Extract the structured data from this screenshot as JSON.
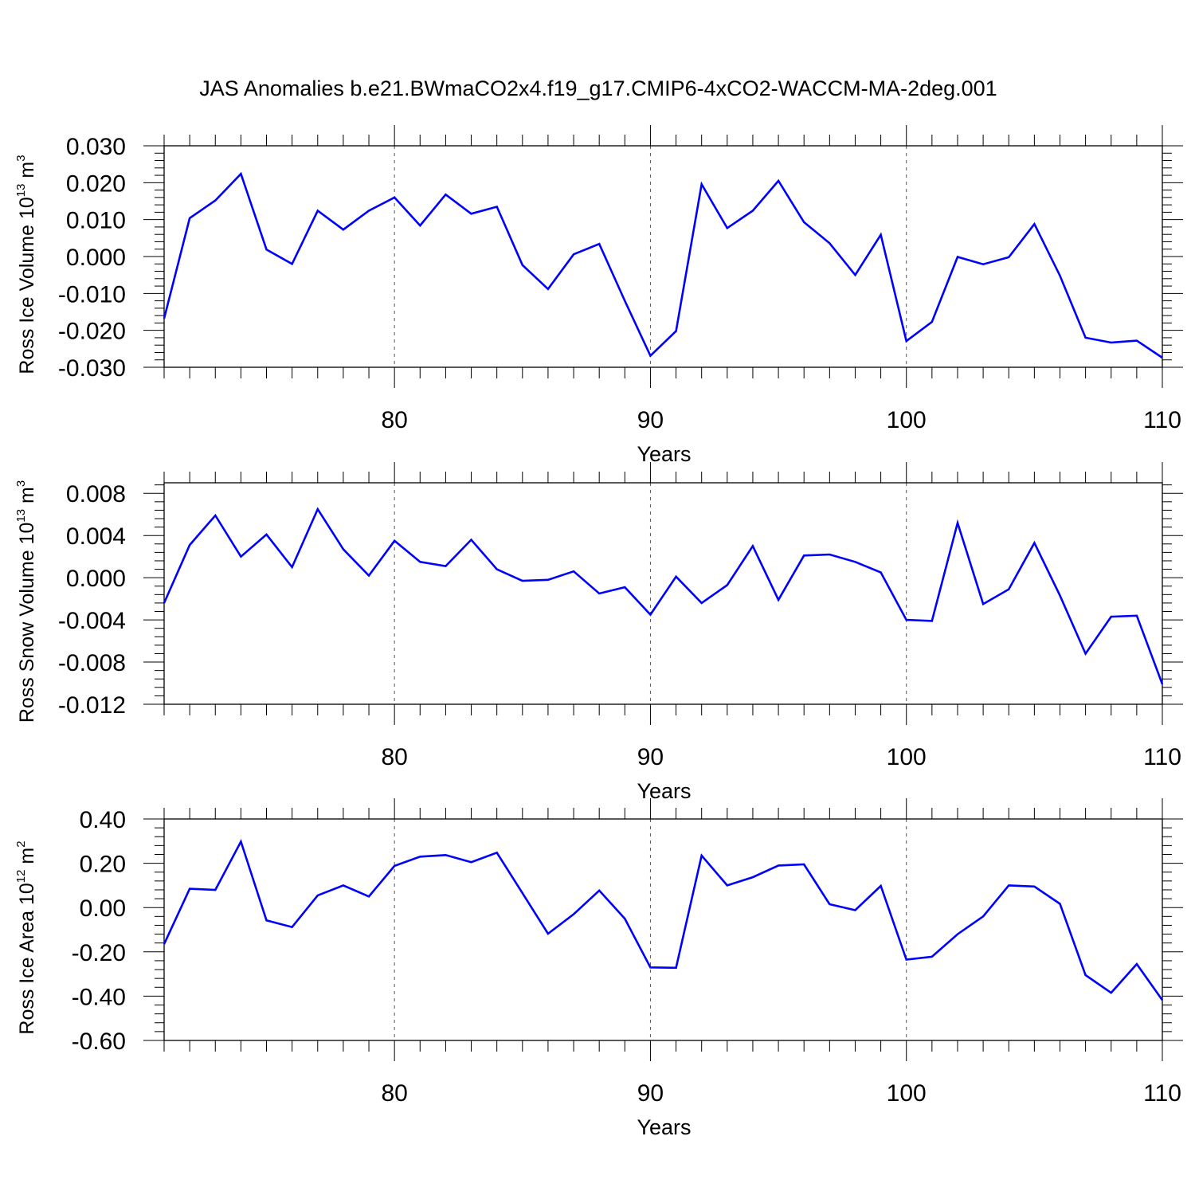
{
  "title": "JAS Anomalies b.e21.BWmaCO2x4.f19_g17.CMIP6-4xCO2-WACCM-MA-2deg.001",
  "colors": {
    "line": "#0000ff",
    "axes": "#000000",
    "grid": "#555555"
  },
  "chart_data": [
    {
      "type": "line",
      "ylabel": {
        "prefix": "Ross Ice Volume 10",
        "exp": "13",
        "unit": " m",
        "unit_exp": "3"
      },
      "xlabel": "Years",
      "xlim": [
        71,
        110
      ],
      "ylim": [
        -0.03,
        0.03
      ],
      "xticks": [
        80,
        90,
        100,
        110
      ],
      "xtick_labels": [
        "80",
        "90",
        "100",
        "110"
      ],
      "yticks": [
        -0.03,
        -0.02,
        -0.01,
        0,
        0.01,
        0.02,
        0.03
      ],
      "ytick_labels": [
        "-0.030",
        "-0.020",
        "-0.010",
        "0.000",
        "0.010",
        "0.020",
        "0.030"
      ],
      "grid": "vertical dashed at major x ticks",
      "x": [
        71,
        72,
        73,
        74,
        75,
        76,
        77,
        78,
        79,
        80,
        81,
        82,
        83,
        84,
        85,
        86,
        87,
        88,
        89,
        90,
        91,
        92,
        93,
        94,
        95,
        96,
        97,
        98,
        99,
        100,
        101,
        102,
        103,
        104,
        105,
        106,
        107,
        108,
        109,
        110
      ],
      "series": [
        {
          "values": [
            -0.0168,
            0.0104,
            0.0152,
            0.0224,
            0.0019,
            -0.002,
            0.0124,
            0.0073,
            0.0124,
            0.016,
            0.0084,
            0.0168,
            0.0116,
            0.0135,
            -0.0023,
            -0.0088,
            0.0006,
            0.0034,
            -0.012,
            -0.0269,
            -0.0202,
            0.0196,
            0.0077,
            0.0124,
            0.0205,
            0.0093,
            0.0036,
            -0.005,
            0.0059,
            -0.0229,
            -0.0177,
            -0.0001,
            -0.0021,
            -0.0002,
            0.0088,
            -0.0052,
            -0.022,
            -0.0233,
            -0.0228,
            -0.0274
          ]
        }
      ]
    },
    {
      "type": "line",
      "ylabel": {
        "prefix": "Ross Snow Volume 10",
        "exp": "13",
        "unit": " m",
        "unit_exp": "3"
      },
      "xlabel": "Years",
      "xlim": [
        71,
        110
      ],
      "ylim": [
        -0.012,
        0.009
      ],
      "xticks": [
        80,
        90,
        100,
        110
      ],
      "xtick_labels": [
        "80",
        "90",
        "100",
        "110"
      ],
      "yticks": [
        -0.012,
        -0.008,
        -0.004,
        0,
        0.004,
        0.008
      ],
      "ytick_labels": [
        "-0.012",
        "-0.008",
        "-0.004",
        "0.000",
        "0.004",
        "0.008"
      ],
      "grid": "vertical dashed at major x ticks",
      "x": [
        71,
        72,
        73,
        74,
        75,
        76,
        77,
        78,
        79,
        80,
        81,
        82,
        83,
        84,
        85,
        86,
        87,
        88,
        89,
        90,
        91,
        92,
        93,
        94,
        95,
        96,
        97,
        98,
        99,
        100,
        101,
        102,
        103,
        104,
        105,
        106,
        107,
        108,
        109,
        110
      ],
      "series": [
        {
          "values": [
            -0.0024,
            0.0031,
            0.0059,
            0.002,
            0.0041,
            0.001,
            0.0065,
            0.0027,
            0.0002,
            0.0035,
            0.0015,
            0.0011,
            0.0036,
            0.0008,
            -0.0003,
            -0.0002,
            0.0006,
            -0.0015,
            -0.0009,
            -0.0035,
            0.0001,
            -0.0024,
            -0.0007,
            0.003,
            -0.0021,
            0.0021,
            0.0022,
            0.0015,
            0.0005,
            -0.004,
            -0.0041,
            0.0052,
            -0.0025,
            -0.0011,
            0.0033,
            -0.0017,
            -0.0072,
            -0.0037,
            -0.0036,
            -0.0101
          ]
        }
      ]
    },
    {
      "type": "line",
      "ylabel": {
        "prefix": "Ross Ice Area 10",
        "exp": "12",
        "unit": " m",
        "unit_exp": "2"
      },
      "xlabel": "Years",
      "xlim": [
        71,
        110
      ],
      "ylim": [
        -0.6,
        0.4
      ],
      "xticks": [
        80,
        90,
        100,
        110
      ],
      "xtick_labels": [
        "80",
        "90",
        "100",
        "110"
      ],
      "yticks": [
        -0.6,
        -0.4,
        -0.2,
        0,
        0.2,
        0.4
      ],
      "ytick_labels": [
        "-0.60",
        "-0.40",
        "-0.20",
        "0.00",
        "0.20",
        "0.40"
      ],
      "grid": "vertical dashed at major x ticks",
      "x": [
        71,
        72,
        73,
        74,
        75,
        76,
        77,
        78,
        79,
        80,
        81,
        82,
        83,
        84,
        85,
        86,
        87,
        88,
        89,
        90,
        91,
        92,
        93,
        94,
        95,
        96,
        97,
        98,
        99,
        100,
        101,
        102,
        103,
        104,
        105,
        106,
        107,
        108,
        109,
        110
      ],
      "series": [
        {
          "values": [
            -0.165,
            0.085,
            0.08,
            0.298,
            -0.058,
            -0.088,
            0.055,
            0.1,
            0.05,
            0.188,
            0.23,
            0.237,
            0.205,
            0.248,
            0.065,
            -0.118,
            -0.03,
            0.077,
            -0.05,
            -0.27,
            -0.272,
            0.235,
            0.1,
            0.137,
            0.19,
            0.195,
            0.015,
            -0.012,
            0.098,
            -0.235,
            -0.222,
            -0.12,
            -0.04,
            0.1,
            0.095,
            0.017,
            -0.305,
            -0.385,
            -0.255,
            -0.418
          ]
        }
      ]
    }
  ]
}
